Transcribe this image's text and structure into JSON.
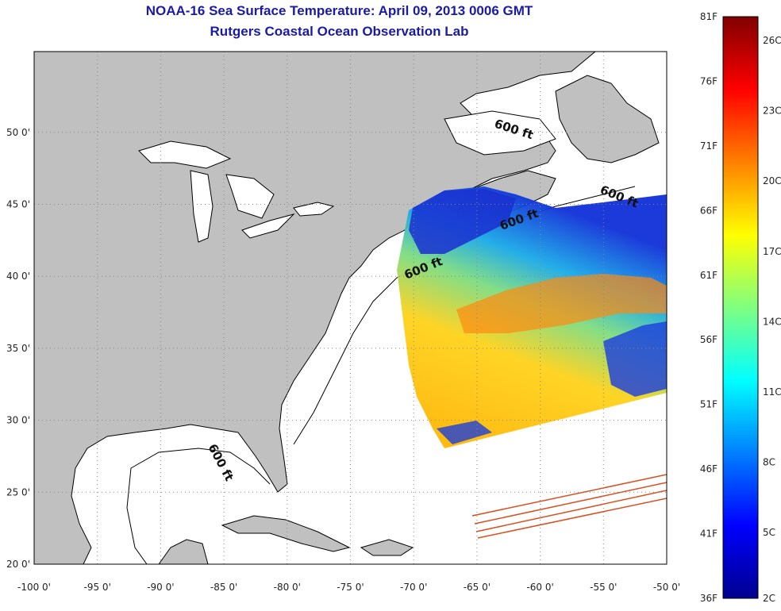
{
  "title": "NOAA-16 Sea Surface Temperature:  April 09, 2013 0006 GMT",
  "subtitle": "Rutgers Coastal Ocean Observation Lab",
  "map": {
    "lon_ticks": [
      "-100 0'",
      "-95 0'",
      "-90 0'",
      "-85 0'",
      "-80 0'",
      "-75 0'",
      "-70 0'",
      "-65 0'",
      "-60 0'",
      "-55 0'",
      "-50 0'"
    ],
    "lat_ticks": [
      "20 0'",
      "25 0'",
      "30 0'",
      "35 0'",
      "40 0'",
      "45 0'",
      "50 0'"
    ],
    "isobath_labels": [
      "600 ft",
      "600 ft",
      "600 ft",
      "600 ft",
      "600 ft"
    ],
    "land_color": "#c0c0c0",
    "ocean_color": "#ffffff"
  },
  "colorbar": {
    "f_labels": [
      "81F",
      "76F",
      "71F",
      "66F",
      "61F",
      "56F",
      "51F",
      "46F",
      "41F",
      "36F"
    ],
    "c_labels": [
      "26C",
      "23C",
      "20C",
      "17C",
      "14C",
      "11C",
      "8C",
      "5C",
      "2C"
    ],
    "colors": [
      "#00008f",
      "#0000ff",
      "#0080ff",
      "#00ffff",
      "#80ff80",
      "#ffff00",
      "#ff8000",
      "#ff0000",
      "#800000"
    ]
  }
}
